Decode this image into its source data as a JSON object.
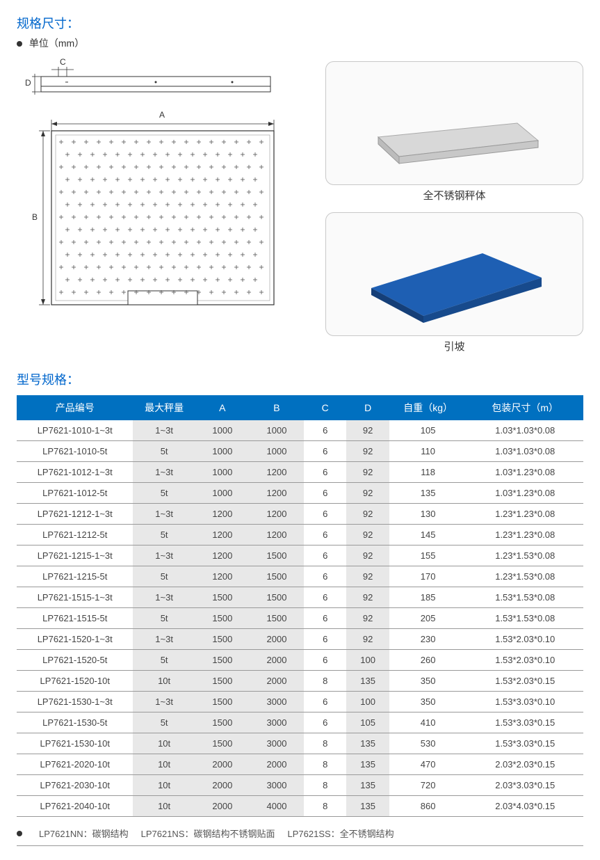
{
  "section1": {
    "title": "规格尺寸：",
    "unit_label": "单位（mm）"
  },
  "diagram": {
    "labels": {
      "A": "A",
      "B": "B",
      "C": "C",
      "D": "D"
    }
  },
  "photo1_caption": "全不锈钢秤体",
  "photo2_caption": "引坡",
  "section2_title": "型号规格：",
  "table": {
    "columns": [
      "产品编号",
      "最大秤量",
      "A",
      "B",
      "C",
      "D",
      "自重（kg）",
      "包装尺寸（m）"
    ],
    "col_widths": [
      "150",
      "80",
      "70",
      "70",
      "55",
      "55",
      "100",
      "150"
    ],
    "header_bg": "#0070c0",
    "header_fg": "#ffffff",
    "shade_bg": "#e8e8e8",
    "border_color": "#999999",
    "shaded_cols": [
      1,
      2,
      3,
      5
    ],
    "rows": [
      [
        "LP7621-1010-1~3t",
        "1~3t",
        "1000",
        "1000",
        "6",
        "92",
        "105",
        "1.03*1.03*0.08"
      ],
      [
        "LP7621-1010-5t",
        "5t",
        "1000",
        "1000",
        "6",
        "92",
        "110",
        "1.03*1.03*0.08"
      ],
      [
        "LP7621-1012-1~3t",
        "1~3t",
        "1000",
        "1200",
        "6",
        "92",
        "118",
        "1.03*1.23*0.08"
      ],
      [
        "LP7621-1012-5t",
        "5t",
        "1000",
        "1200",
        "6",
        "92",
        "135",
        "1.03*1.23*0.08"
      ],
      [
        "LP7621-1212-1~3t",
        "1~3t",
        "1200",
        "1200",
        "6",
        "92",
        "130",
        "1.23*1.23*0.08"
      ],
      [
        "LP7621-1212-5t",
        "5t",
        "1200",
        "1200",
        "6",
        "92",
        "145",
        "1.23*1.23*0.08"
      ],
      [
        "LP7621-1215-1~3t",
        "1~3t",
        "1200",
        "1500",
        "6",
        "92",
        "155",
        "1.23*1.53*0.08"
      ],
      [
        "LP7621-1215-5t",
        "5t",
        "1200",
        "1500",
        "6",
        "92",
        "170",
        "1.23*1.53*0.08"
      ],
      [
        "LP7621-1515-1~3t",
        "1~3t",
        "1500",
        "1500",
        "6",
        "92",
        "185",
        "1.53*1.53*0.08"
      ],
      [
        "LP7621-1515-5t",
        "5t",
        "1500",
        "1500",
        "6",
        "92",
        "205",
        "1.53*1.53*0.08"
      ],
      [
        "LP7621-1520-1~3t",
        "1~3t",
        "1500",
        "2000",
        "6",
        "92",
        "230",
        "1.53*2.03*0.10"
      ],
      [
        "LP7621-1520-5t",
        "5t",
        "1500",
        "2000",
        "6",
        "100",
        "260",
        "1.53*2.03*0.10"
      ],
      [
        "LP7621-1520-10t",
        "10t",
        "1500",
        "2000",
        "8",
        "135",
        "350",
        "1.53*2.03*0.15"
      ],
      [
        "LP7621-1530-1~3t",
        "1~3t",
        "1500",
        "3000",
        "6",
        "100",
        "350",
        "1.53*3.03*0.10"
      ],
      [
        "LP7621-1530-5t",
        "5t",
        "1500",
        "3000",
        "6",
        "105",
        "410",
        "1.53*3.03*0.15"
      ],
      [
        "LP7621-1530-10t",
        "10t",
        "1500",
        "3000",
        "8",
        "135",
        "530",
        "1.53*3.03*0.15"
      ],
      [
        "LP7621-2020-10t",
        "10t",
        "2000",
        "2000",
        "8",
        "135",
        "470",
        "2.03*2.03*0.15"
      ],
      [
        "LP7621-2030-10t",
        "10t",
        "2000",
        "3000",
        "8",
        "135",
        "720",
        "2.03*3.03*0.15"
      ],
      [
        "LP7621-2040-10t",
        "10t",
        "2000",
        "4000",
        "8",
        "135",
        "860",
        "2.03*4.03*0.15"
      ]
    ]
  },
  "footer": {
    "nn": "LP7621NN：碳钢结构",
    "ns": "LP7621NS：碳钢结构不锈钢贴面",
    "ss": "LP7621SS：全不锈钢结构"
  },
  "colors": {
    "title": "#0066cc",
    "accent_blue": "#0070c0",
    "ramp_blue": "#1e5fb3"
  }
}
